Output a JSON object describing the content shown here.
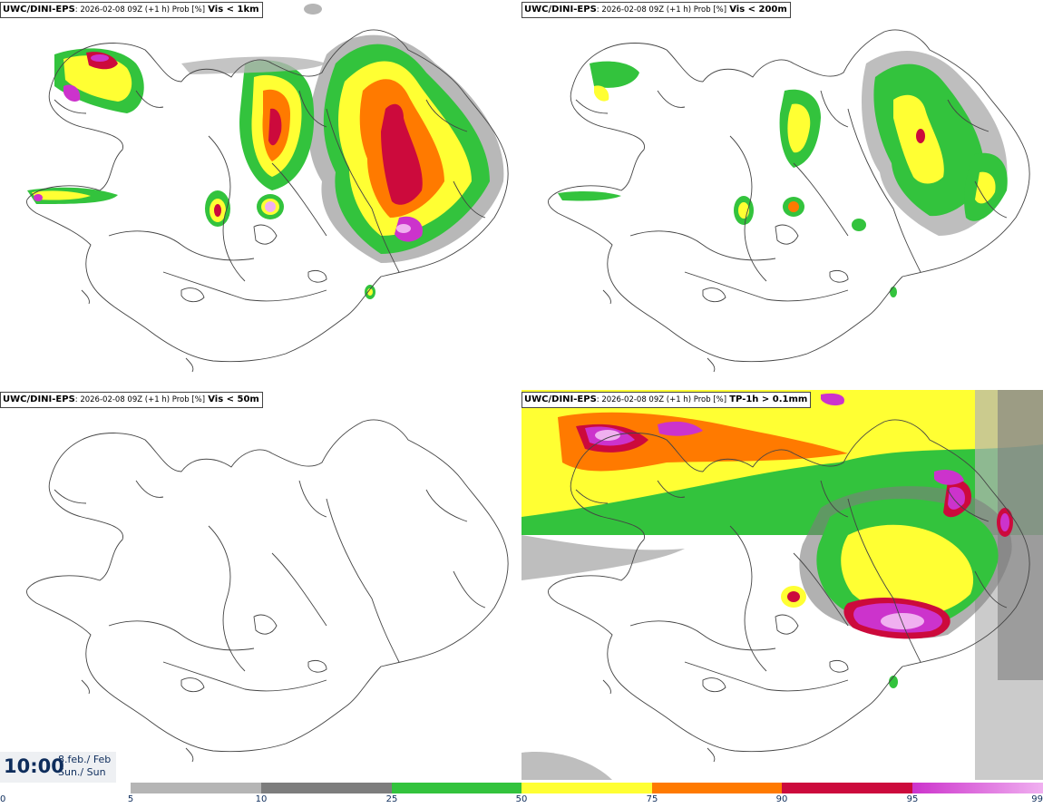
{
  "panels": [
    {
      "source": "UWC/DINI-EPS",
      "meta": ": 2026-02-08 09Z (+1 h) Prob [%]",
      "param": "Vis < 1km"
    },
    {
      "source": "UWC/DINI-EPS",
      "meta": ": 2026-02-08 09Z (+1 h) Prob [%]",
      "param": "Vis < 200m"
    },
    {
      "source": "UWC/DINI-EPS",
      "meta": ": 2026-02-08 09Z (+1 h) Prob [%]",
      "param": "Vis < 50m"
    },
    {
      "source": "UWC/DINI-EPS",
      "meta": ": 2026-02-08 09Z (+1 h) Prob [%]",
      "param": "TP-1h > 0.1mm"
    }
  ],
  "valid_time": {
    "time": "10:00",
    "date_line1": "8.feb./ Feb",
    "date_line2": "Sun./ Sun"
  },
  "legend": {
    "ticks": [
      "0",
      "5",
      "10",
      "25",
      "50",
      "75",
      "90",
      "95",
      "99"
    ],
    "colors": {
      "5-10": "#b5b5b5",
      "10-25": "#7d7d7d",
      "25-50": "#33c33d",
      "50-75": "#ffff33",
      "75-90": "#ff7a00",
      "90-95": "#cc0a3c",
      "95-99": "#cc33cc",
      "99": "#f0b0f0"
    }
  },
  "map": {
    "region": "Iceland",
    "outline_color": "#444444"
  }
}
